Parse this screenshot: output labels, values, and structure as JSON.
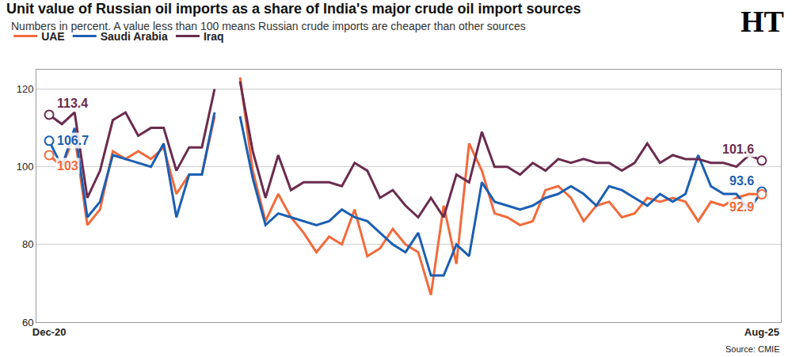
{
  "chart_data": {
    "type": "line",
    "title": "Unit value of Russian oil imports as a share of India's major crude oil import sources",
    "subtitle": "Numbers in percent. A value less than 100 means Russian crude imports are cheaper than other sources",
    "source": "Source: CMIE",
    "logo": "HT",
    "categories": [
      "Dec-20",
      null,
      null,
      null,
      null,
      null,
      null,
      null,
      null,
      null,
      null,
      null,
      null,
      null,
      null,
      null,
      null,
      null,
      null,
      null,
      null,
      null,
      null,
      null,
      null,
      null,
      null,
      null,
      null,
      null,
      null,
      null,
      null,
      null,
      null,
      null,
      null,
      null,
      null,
      null,
      null,
      null,
      null,
      null,
      null,
      null,
      null,
      null,
      null,
      null,
      null,
      null,
      null,
      null,
      null,
      null,
      "Aug-25"
    ],
    "series": [
      {
        "name": "UAE",
        "color": "#f26a3b",
        "values": [
          103,
          100,
          108,
          85,
          89,
          104,
          102,
          104,
          102,
          105,
          93,
          98,
          98,
          113,
          null,
          123,
          99,
          86,
          93,
          87,
          83,
          78,
          82,
          80,
          89,
          77,
          79,
          84,
          80,
          78,
          67,
          90,
          75,
          106,
          99,
          88,
          87,
          85,
          86,
          94,
          95,
          92,
          86,
          90,
          91,
          87,
          88,
          92,
          91,
          92,
          91,
          86,
          91,
          90,
          92,
          93,
          92.9
        ]
      },
      {
        "name": "Saudi Arabia",
        "color": "#1b5fb3",
        "values": [
          106.7,
          100,
          110,
          87,
          91,
          103,
          102,
          101,
          100,
          106,
          87,
          98,
          98,
          114,
          null,
          113,
          97,
          85,
          88,
          87,
          86,
          85,
          86,
          89,
          87,
          86,
          83,
          80,
          78,
          83,
          72,
          72,
          80,
          77,
          96,
          91,
          90,
          89,
          90,
          92,
          93,
          95,
          93,
          90,
          95,
          94,
          92,
          90,
          93,
          91,
          93,
          103,
          95,
          93,
          93,
          89,
          93.6
        ]
      },
      {
        "name": "Iraq",
        "color": "#6b2b4e",
        "values": [
          113.4,
          111,
          114,
          92,
          99,
          112,
          114,
          108,
          110,
          110,
          99,
          105,
          105,
          120,
          null,
          122,
          104,
          92,
          103,
          94,
          96,
          96,
          96,
          95,
          101,
          99,
          92,
          94,
          90,
          87,
          92,
          87,
          98,
          96,
          109,
          100,
          100,
          98,
          101,
          99,
          102,
          101,
          102,
          101,
          101,
          99,
          101,
          106,
          101,
          103,
          102,
          102,
          101,
          101,
          100,
          103,
          101.6
        ]
      }
    ],
    "ylim": [
      60,
      125
    ],
    "yticks": [
      60,
      80,
      100,
      120
    ],
    "grid": true,
    "legend": "top-left",
    "annotations": [
      {
        "text": "113.4",
        "series": "Iraq",
        "x": 0,
        "y": 113.4
      },
      {
        "text": "106.7",
        "series": "Saudi Arabia",
        "x": 0,
        "y": 106.7
      },
      {
        "text": "103",
        "series": "UAE",
        "x": 0,
        "y": 103
      },
      {
        "text": "101.6",
        "series": "Iraq",
        "x": 56,
        "y": 101.6
      },
      {
        "text": "93.6",
        "series": "Saudi Arabia",
        "x": 56,
        "y": 93.6
      },
      {
        "text": "92.9",
        "series": "UAE",
        "x": 56,
        "y": 92.9
      }
    ]
  }
}
